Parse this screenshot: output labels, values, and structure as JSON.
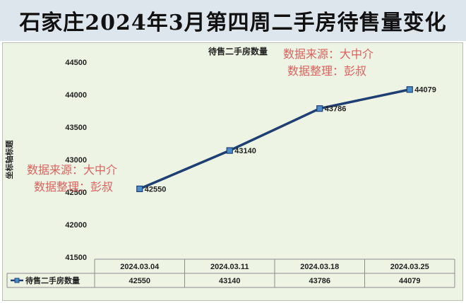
{
  "page_title": "石家庄2024年3月第四周二手房待售量变化",
  "watermarks": [
    {
      "line1": "数据来源：大中介",
      "line2": "数据整理：彭叔"
    },
    {
      "line1": "数据来源：大中介",
      "line2": "数据整理：彭叔"
    }
  ],
  "colors": {
    "line": "#1f3f73",
    "marker_fill": "#4d8ec9",
    "plot_bg": "#eef4e4",
    "watermark": "#d9625e"
  },
  "chart_data": {
    "type": "line",
    "title": "待售二手房数量",
    "ylabel": "坐标轴标题",
    "xlabel": "",
    "categories": [
      "2024.03.04",
      "2024.03.11",
      "2024.03.18",
      "2024.03.25"
    ],
    "series": [
      {
        "name": "待售二手房数量",
        "values": [
          42550,
          43140,
          43786,
          44079
        ]
      }
    ],
    "ylim": [
      41500,
      44500
    ],
    "yticks": [
      41500,
      42000,
      42500,
      43000,
      43500,
      44000,
      44500
    ],
    "grid": false,
    "legend": "data-table-left",
    "data_table": true
  }
}
